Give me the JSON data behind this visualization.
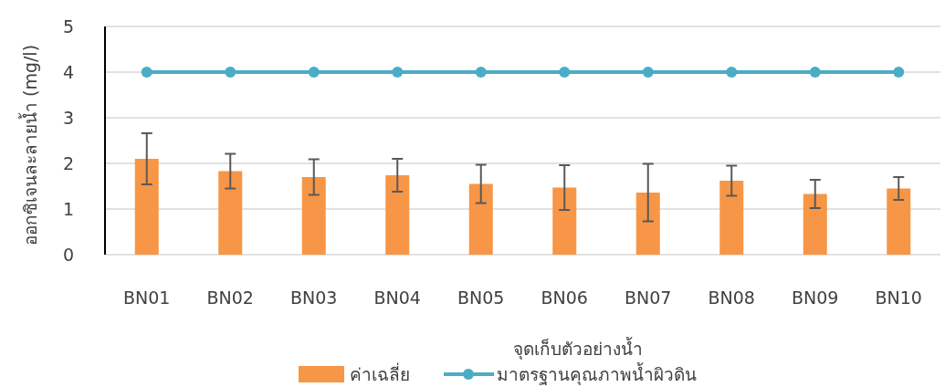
{
  "chart_data": {
    "type": "bar",
    "xlabel": "จุดเก็บตัวอย่างน้ำ",
    "ylabel": "ออกซิเจนละลายน้ำ (mg/l)",
    "categories": [
      "BN01",
      "BN02",
      "BN03",
      "BN04",
      "BN05",
      "BN06",
      "BN07",
      "BN08",
      "BN09",
      "BN10"
    ],
    "series": [
      {
        "name": "ค่าเฉลี่ย",
        "color": "#f79646",
        "values": [
          2.1,
          1.83,
          1.7,
          1.74,
          1.55,
          1.47,
          1.36,
          1.62,
          1.33,
          1.45
        ],
        "errors": [
          0.56,
          0.38,
          0.39,
          0.36,
          0.42,
          0.49,
          0.63,
          0.33,
          0.31,
          0.25
        ]
      },
      {
        "name": "มาตรฐานคุณภาพน้ำผิวดิน",
        "type": "line",
        "color": "#4bacc6",
        "values": [
          4,
          4,
          4,
          4,
          4,
          4,
          4,
          4,
          4,
          4
        ]
      }
    ],
    "marker": "circle",
    "line_style": "solid",
    "ylim": [
      0,
      5
    ],
    "yticks": [
      0,
      1,
      2,
      3,
      4,
      5
    ],
    "grid": "y",
    "legend": "bottom"
  }
}
